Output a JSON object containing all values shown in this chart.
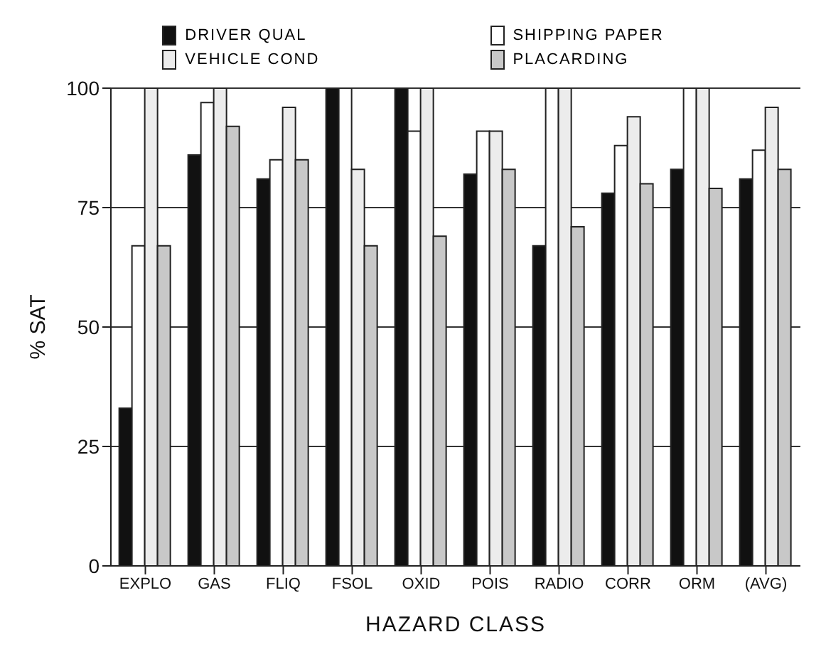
{
  "chart_data": {
    "type": "bar",
    "xlabel": "HAZARD CLASS",
    "ylabel": "% SAT",
    "categories": [
      "EXPLO",
      "GAS",
      "FLIQ",
      "FSOL",
      "OXID",
      "POIS",
      "RADIO",
      "CORR",
      "ORM",
      "(AVG)"
    ],
    "series": [
      {
        "name": "DRIVER QUAL",
        "color": "#111111",
        "values": [
          33,
          86,
          81,
          100,
          100,
          82,
          67,
          78,
          83,
          81
        ]
      },
      {
        "name": "SHIPPING PAPER",
        "color": "#ffffff",
        "values": [
          67,
          97,
          85,
          100,
          91,
          91,
          100,
          88,
          100,
          87
        ]
      },
      {
        "name": "VEHICLE COND",
        "color": "#ececec",
        "values": [
          100,
          100,
          96,
          83,
          100,
          91,
          100,
          94,
          100,
          96
        ]
      },
      {
        "name": "PLACARDING",
        "color": "#c8c8c8",
        "values": [
          67,
          92,
          85,
          67,
          69,
          83,
          71,
          80,
          79,
          83
        ]
      }
    ],
    "ylim": [
      0,
      100
    ],
    "yticks": [
      0,
      25,
      50,
      75,
      100
    ],
    "grid": "y",
    "legend": "top"
  }
}
